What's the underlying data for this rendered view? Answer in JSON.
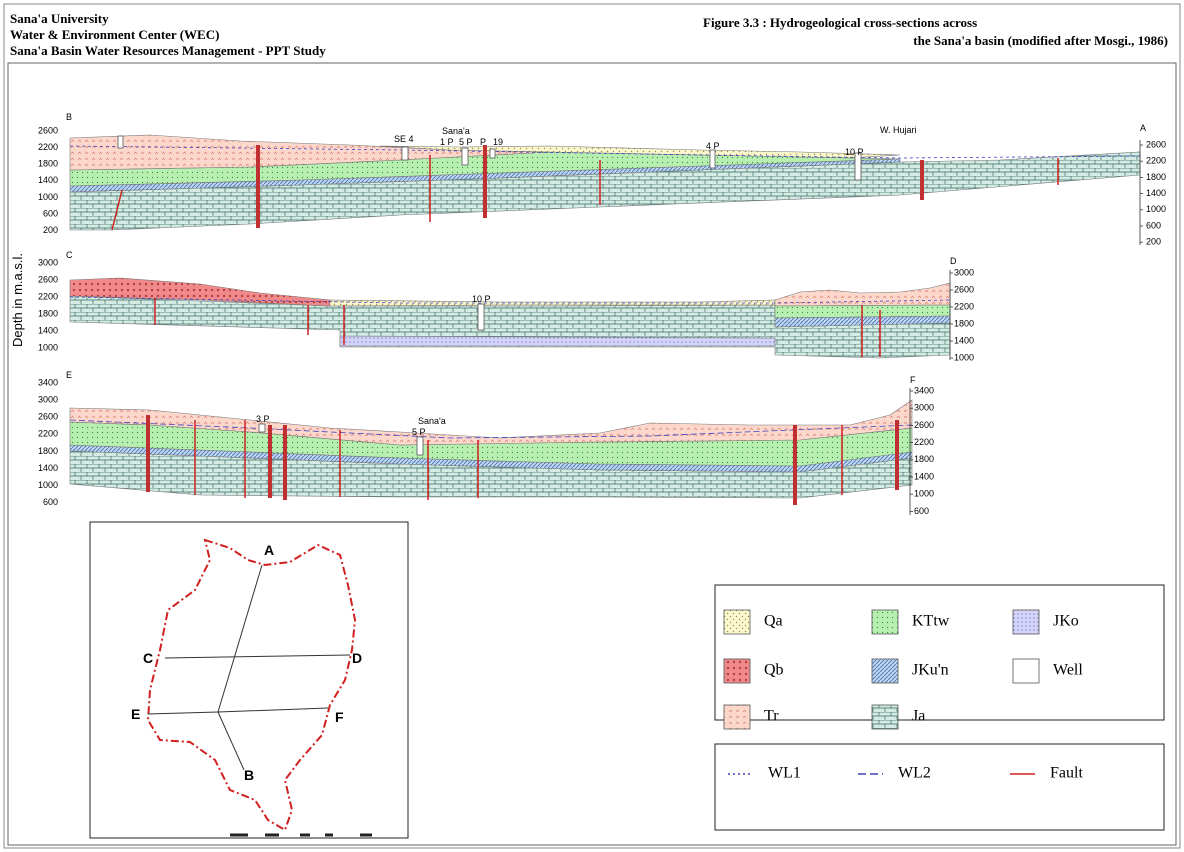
{
  "header": {
    "org_lines": [
      "Sana'a University",
      "Water & Environment Center (WEC)",
      "Sana'a Basin Water Resources Management - PPT Study"
    ],
    "figure_title": [
      "Figure 3.3 : Hydrogeological cross-sections across",
      "the Sana'a basin (modified after Mosgi., 1986)"
    ]
  },
  "y_axis_label": "Depth in m.a.s.l.",
  "sections": [
    {
      "start_label": "B",
      "end_label": "A",
      "left_ticks": [
        2600,
        2200,
        1800,
        1400,
        1000,
        600,
        200
      ],
      "right_ticks": [
        2600,
        2200,
        1800,
        1400,
        1000,
        600,
        200
      ],
      "well_labels": [
        "SE 4",
        "Sana'a",
        "1 P",
        "5 P",
        "P",
        "19",
        "4 P",
        "10 P",
        "W. Hujari"
      ]
    },
    {
      "start_label": "C",
      "end_label": "D",
      "left_ticks": [
        3000,
        2600,
        2200,
        1800,
        1400,
        1000
      ],
      "right_ticks": [
        3000,
        2600,
        2200,
        1800,
        1400,
        1000
      ],
      "well_labels": [
        "10 P"
      ]
    },
    {
      "start_label": "E",
      "end_label": "F",
      "left_ticks": [
        3400,
        3000,
        2600,
        2200,
        1800,
        1400,
        1000,
        600
      ],
      "right_ticks": [
        3400,
        3000,
        2600,
        2200,
        1800,
        1400,
        1000,
        600
      ],
      "well_labels": [
        "3 P",
        "Sana'a",
        "5 P"
      ]
    }
  ],
  "map": {
    "points": [
      "A",
      "B",
      "C",
      "D",
      "E",
      "F"
    ]
  },
  "legend": {
    "units": [
      "Qa",
      "KTtw",
      "JKo",
      "Qb",
      "JKu'n",
      "Well",
      "Tr",
      "Ja"
    ],
    "lines": [
      "WL1",
      "WL2",
      "Fault"
    ]
  }
}
